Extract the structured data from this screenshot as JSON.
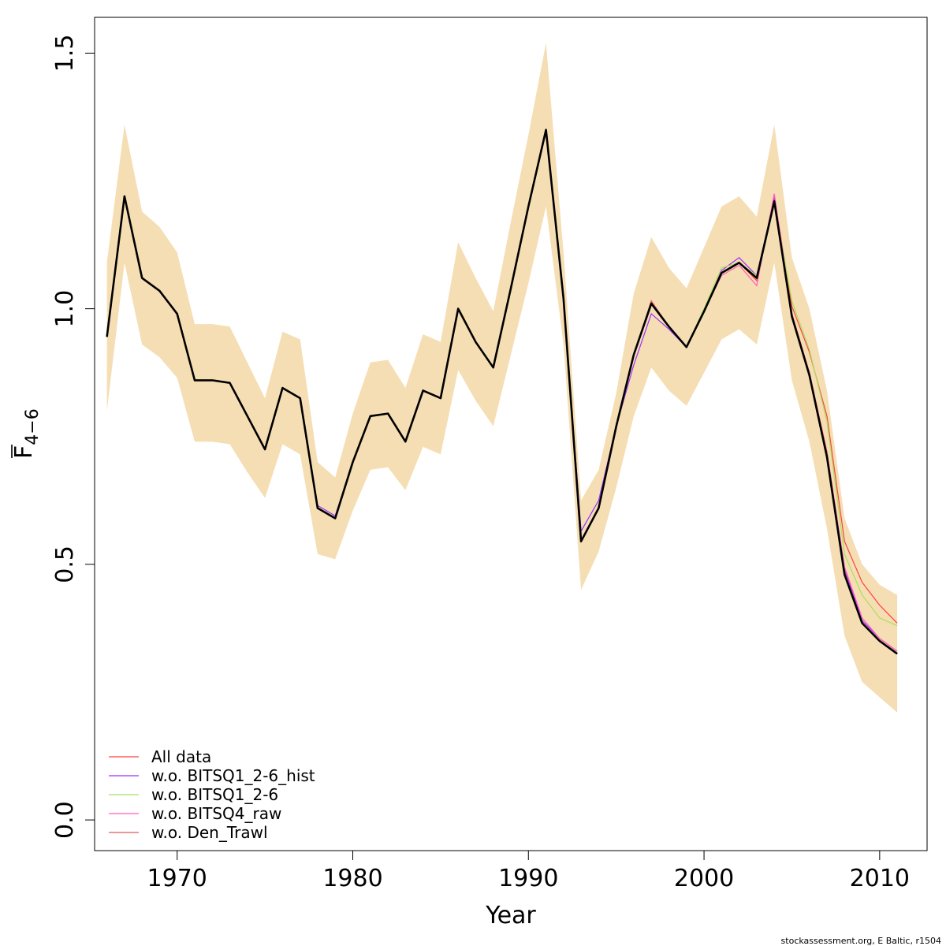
{
  "chart_data": {
    "type": "line",
    "xlabel": "Year",
    "ylabel": "F",
    "ylabel_subscript": "4−6",
    "xlim": [
      1965.3,
      2012.7
    ],
    "ylim": [
      -0.06,
      1.57
    ],
    "x_ticks": [
      1970,
      1980,
      1990,
      2000,
      2010
    ],
    "x_tick_labels": [
      "1970",
      "1980",
      "1990",
      "2000",
      "2010"
    ],
    "y_ticks": [
      0.0,
      0.5,
      1.0,
      1.5
    ],
    "y_tick_labels": [
      "0.0",
      "0.5",
      "1.0",
      "1.5"
    ],
    "grid": false,
    "legend_position": "bottom-left",
    "credit": "stockassessment.org, E Baltic, r1504",
    "confidence_band": {
      "color": "#F5DEB3",
      "x": [
        1966,
        1967,
        1968,
        1969,
        1970,
        1971,
        1972,
        1973,
        1974,
        1975,
        1976,
        1977,
        1978,
        1979,
        1980,
        1981,
        1982,
        1983,
        1984,
        1985,
        1986,
        1987,
        1988,
        1989,
        1990,
        1991,
        1992,
        1993,
        1994,
        1995,
        1996,
        1997,
        1998,
        1999,
        2000,
        2001,
        2002,
        2003,
        2004,
        2005,
        2006,
        2007,
        2008,
        2009,
        2010,
        2011
      ],
      "upper": [
        1.09,
        1.36,
        1.19,
        1.16,
        1.11,
        0.97,
        0.97,
        0.965,
        0.895,
        0.825,
        0.955,
        0.94,
        0.7,
        0.67,
        0.795,
        0.895,
        0.9,
        0.845,
        0.95,
        0.935,
        1.13,
        1.06,
        0.995,
        1.17,
        1.34,
        1.52,
        1.11,
        0.625,
        0.685,
        0.835,
        1.03,
        1.14,
        1.08,
        1.04,
        1.12,
        1.2,
        1.22,
        1.18,
        1.36,
        1.1,
        1.0,
        0.84,
        0.59,
        0.5,
        0.46,
        0.44
      ],
      "lower": [
        0.8,
        1.09,
        0.93,
        0.905,
        0.865,
        0.74,
        0.74,
        0.735,
        0.68,
        0.63,
        0.735,
        0.715,
        0.52,
        0.51,
        0.605,
        0.685,
        0.69,
        0.645,
        0.73,
        0.715,
        0.88,
        0.82,
        0.77,
        0.91,
        1.05,
        1.2,
        0.93,
        0.45,
        0.525,
        0.65,
        0.79,
        0.885,
        0.84,
        0.81,
        0.875,
        0.94,
        0.96,
        0.93,
        1.09,
        0.86,
        0.74,
        0.57,
        0.36,
        0.27,
        0.24,
        0.21
      ]
    },
    "baseline_series": {
      "color": "#000000",
      "width": 2.6,
      "x": [
        1966,
        1967,
        1968,
        1969,
        1970,
        1971,
        1972,
        1973,
        1974,
        1975,
        1976,
        1977,
        1978,
        1979,
        1980,
        1981,
        1982,
        1983,
        1984,
        1985,
        1986,
        1987,
        1988,
        1989,
        1990,
        1991,
        1992,
        1993,
        1994,
        1995,
        1996,
        1997,
        1998,
        1999,
        2000,
        2001,
        2002,
        2003,
        2004,
        2005,
        2006,
        2007,
        2008,
        2009,
        2010,
        2011
      ],
      "values": [
        0.945,
        1.22,
        1.06,
        1.035,
        0.99,
        0.86,
        0.86,
        0.855,
        0.79,
        0.725,
        0.845,
        0.825,
        0.61,
        0.59,
        0.7,
        0.79,
        0.795,
        0.74,
        0.84,
        0.825,
        1.0,
        0.935,
        0.885,
        1.04,
        1.2,
        1.35,
        1.02,
        0.545,
        0.61,
        0.77,
        0.91,
        1.01,
        0.965,
        0.925,
        0.995,
        1.07,
        1.09,
        1.06,
        1.21,
        0.985,
        0.87,
        0.71,
        0.48,
        0.385,
        0.35,
        0.325
      ]
    },
    "series": [
      {
        "name": "All data",
        "color": "#FF4040",
        "x": [
          1966,
          1967,
          1968,
          1969,
          1970,
          1971,
          1972,
          1973,
          1974,
          1975,
          1976,
          1977,
          1978,
          1979,
          1980,
          1981,
          1982,
          1983,
          1984,
          1985,
          1986,
          1987,
          1988,
          1989,
          1990,
          1991,
          1992,
          1993,
          1994,
          1995,
          1996,
          1997,
          1998,
          1999,
          2000,
          2001,
          2002,
          2003,
          2004,
          2005,
          2006,
          2007,
          2008,
          2009,
          2010,
          2011
        ],
        "values": [
          0.945,
          1.22,
          1.06,
          1.035,
          0.99,
          0.86,
          0.86,
          0.855,
          0.79,
          0.725,
          0.845,
          0.825,
          0.61,
          0.59,
          0.7,
          0.79,
          0.795,
          0.74,
          0.84,
          0.825,
          1.0,
          0.935,
          0.885,
          1.04,
          1.2,
          1.35,
          1.02,
          0.545,
          0.61,
          0.77,
          0.91,
          1.015,
          0.965,
          0.925,
          0.995,
          1.07,
          1.09,
          1.055,
          1.22,
          1.005,
          0.915,
          0.79,
          0.545,
          0.465,
          0.42,
          0.385
        ]
      },
      {
        "name": "w.o. BITSQ1_2-6_hist",
        "color": "#9B30FF",
        "x": [
          1966,
          1967,
          1968,
          1969,
          1970,
          1971,
          1972,
          1973,
          1974,
          1975,
          1976,
          1977,
          1978,
          1979,
          1980,
          1981,
          1982,
          1983,
          1984,
          1985,
          1986,
          1987,
          1988,
          1989,
          1990,
          1991,
          1992,
          1993,
          1994,
          1995,
          1996,
          1997,
          1998,
          1999,
          2000,
          2001,
          2002,
          2003,
          2004,
          2005,
          2006,
          2007,
          2008,
          2009,
          2010,
          2011
        ],
        "values": [
          0.945,
          1.22,
          1.06,
          1.035,
          0.99,
          0.86,
          0.86,
          0.855,
          0.79,
          0.725,
          0.845,
          0.825,
          0.615,
          0.595,
          0.7,
          0.79,
          0.795,
          0.74,
          0.84,
          0.825,
          1.0,
          0.935,
          0.885,
          1.04,
          1.2,
          1.345,
          1.02,
          0.565,
          0.625,
          0.77,
          0.89,
          0.99,
          0.96,
          0.925,
          0.995,
          1.075,
          1.1,
          1.065,
          1.215,
          0.985,
          0.87,
          0.71,
          0.49,
          0.39,
          0.355,
          0.33
        ]
      },
      {
        "name": "w.o. BITSQ1_2-6",
        "color": "#A8E05F",
        "x": [
          1966,
          1967,
          1968,
          1969,
          1970,
          1971,
          1972,
          1973,
          1974,
          1975,
          1976,
          1977,
          1978,
          1979,
          1980,
          1981,
          1982,
          1983,
          1984,
          1985,
          1986,
          1987,
          1988,
          1989,
          1990,
          1991,
          1992,
          1993,
          1994,
          1995,
          1996,
          1997,
          1998,
          1999,
          2000,
          2001,
          2002,
          2003,
          2004,
          2005,
          2006,
          2007,
          2008,
          2009,
          2010,
          2011
        ],
        "values": [
          0.945,
          1.22,
          1.06,
          1.035,
          0.99,
          0.86,
          0.86,
          0.855,
          0.79,
          0.725,
          0.845,
          0.825,
          0.61,
          0.59,
          0.7,
          0.79,
          0.795,
          0.74,
          0.84,
          0.825,
          1.0,
          0.935,
          0.885,
          1.04,
          1.2,
          1.35,
          1.02,
          0.545,
          0.61,
          0.77,
          0.91,
          1.015,
          0.965,
          0.925,
          1.0,
          1.08,
          1.09,
          1.065,
          1.21,
          1.015,
          0.92,
          0.78,
          0.52,
          0.44,
          0.395,
          0.38
        ]
      },
      {
        "name": "w.o. BITSQ4_raw",
        "color": "#FF5CC0",
        "x": [
          1966,
          1967,
          1968,
          1969,
          1970,
          1971,
          1972,
          1973,
          1974,
          1975,
          1976,
          1977,
          1978,
          1979,
          1980,
          1981,
          1982,
          1983,
          1984,
          1985,
          1986,
          1987,
          1988,
          1989,
          1990,
          1991,
          1992,
          1993,
          1994,
          1995,
          1996,
          1997,
          1998,
          1999,
          2000,
          2001,
          2002,
          2003,
          2004,
          2005,
          2006,
          2007,
          2008,
          2009,
          2010,
          2011
        ],
        "values": [
          0.945,
          1.22,
          1.06,
          1.035,
          0.99,
          0.86,
          0.86,
          0.855,
          0.79,
          0.725,
          0.845,
          0.825,
          0.61,
          0.59,
          0.7,
          0.79,
          0.795,
          0.74,
          0.84,
          0.825,
          1.0,
          0.935,
          0.885,
          1.04,
          1.2,
          1.35,
          1.02,
          0.545,
          0.61,
          0.77,
          0.91,
          1.015,
          0.965,
          0.925,
          0.995,
          1.065,
          1.085,
          1.045,
          1.225,
          0.99,
          0.875,
          0.72,
          0.495,
          0.395,
          0.355,
          0.33
        ]
      },
      {
        "name": "w.o. Den_Trawl",
        "color": "#E05A5A",
        "x": [
          1966,
          1967,
          1968,
          1969,
          1970,
          1971,
          1972,
          1973,
          1974,
          1975,
          1976,
          1977,
          1978,
          1979,
          1980,
          1981,
          1982,
          1983,
          1984,
          1985,
          1986,
          1987,
          1988,
          1989,
          1990,
          1991,
          1992,
          1993,
          1994,
          1995,
          1996,
          1997,
          1998,
          1999,
          2000,
          2001,
          2002,
          2003,
          2004,
          2005,
          2006,
          2007,
          2008,
          2009,
          2010,
          2011
        ],
        "values": [
          0.945,
          1.22,
          1.06,
          1.035,
          0.99,
          0.86,
          0.86,
          0.855,
          0.79,
          0.725,
          0.845,
          0.825,
          0.61,
          0.59,
          0.7,
          0.79,
          0.795,
          0.74,
          0.84,
          0.825,
          1.0,
          0.935,
          0.885,
          1.04,
          1.2,
          1.35,
          1.02,
          0.545,
          0.61,
          0.77,
          0.91,
          1.015,
          0.965,
          0.925,
          0.995,
          1.07,
          1.09,
          1.06,
          1.21,
          0.99,
          0.875,
          0.72,
          0.485,
          0.385,
          0.35,
          0.325
        ]
      }
    ]
  }
}
